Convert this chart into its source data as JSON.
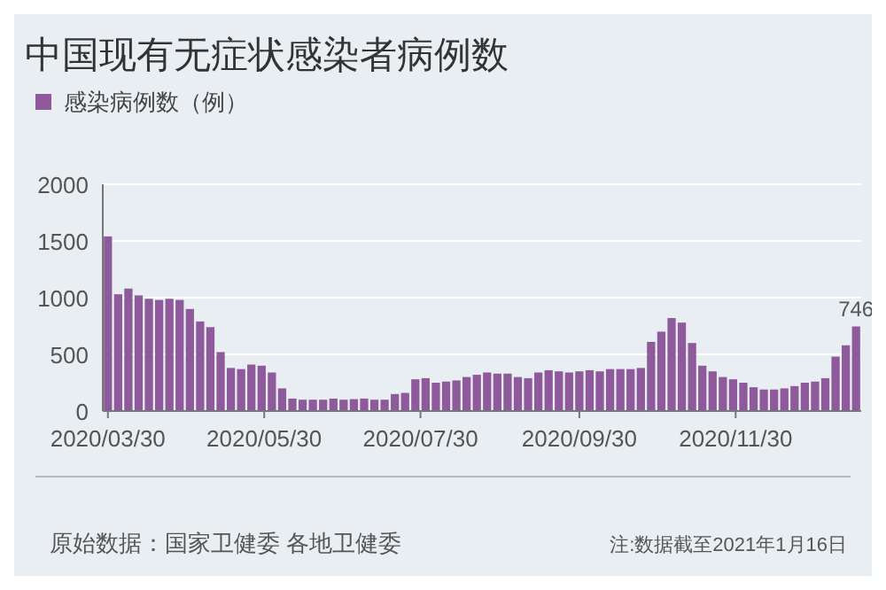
{
  "chart_data": {
    "type": "bar",
    "title": "中国现有无症状感染者病例数",
    "x": [
      "2020-03-30",
      "2020-04-03",
      "2020-04-07",
      "2020-04-11",
      "2020-04-15",
      "2020-04-19",
      "2020-04-23",
      "2020-04-27",
      "2020-05-01",
      "2020-05-05",
      "2020-05-09",
      "2020-05-13",
      "2020-05-17",
      "2020-05-21",
      "2020-05-25",
      "2020-05-29",
      "2020-06-02",
      "2020-06-06",
      "2020-06-10",
      "2020-06-14",
      "2020-06-18",
      "2020-06-22",
      "2020-06-26",
      "2020-06-30",
      "2020-07-04",
      "2020-07-08",
      "2020-07-12",
      "2020-07-16",
      "2020-07-20",
      "2020-07-24",
      "2020-07-28",
      "2020-08-01",
      "2020-08-05",
      "2020-08-09",
      "2020-08-13",
      "2020-08-17",
      "2020-08-21",
      "2020-08-25",
      "2020-08-29",
      "2020-09-02",
      "2020-09-06",
      "2020-09-10",
      "2020-09-14",
      "2020-09-18",
      "2020-09-22",
      "2020-09-26",
      "2020-09-30",
      "2020-10-04",
      "2020-10-08",
      "2020-10-12",
      "2020-10-16",
      "2020-10-20",
      "2020-10-24",
      "2020-10-28",
      "2020-11-01",
      "2020-11-05",
      "2020-11-09",
      "2020-11-13",
      "2020-11-17",
      "2020-11-21",
      "2020-11-25",
      "2020-11-29",
      "2020-12-03",
      "2020-12-07",
      "2020-12-11",
      "2020-12-15",
      "2020-12-19",
      "2020-12-23",
      "2020-12-27",
      "2020-12-31",
      "2021-01-04",
      "2021-01-08",
      "2021-01-12",
      "2021-01-16"
    ],
    "series": [
      {
        "name": "感染病例数（例）",
        "color": "#8e5a9b",
        "values": [
          1540,
          1030,
          1080,
          1020,
          990,
          980,
          990,
          980,
          900,
          790,
          740,
          520,
          380,
          370,
          410,
          400,
          340,
          200,
          110,
          100,
          100,
          100,
          110,
          100,
          105,
          110,
          100,
          100,
          150,
          160,
          280,
          290,
          250,
          260,
          270,
          300,
          320,
          340,
          330,
          330,
          300,
          290,
          340,
          360,
          350,
          340,
          350,
          360,
          350,
          370,
          370,
          370,
          380,
          610,
          700,
          820,
          780,
          600,
          400,
          350,
          300,
          280,
          250,
          210,
          190,
          190,
          200,
          220,
          250,
          260,
          290,
          480,
          580,
          746
        ],
        "value_labels": [
          null,
          null,
          null,
          null,
          null,
          null,
          null,
          null,
          null,
          null,
          null,
          null,
          null,
          null,
          null,
          null,
          null,
          null,
          null,
          null,
          null,
          null,
          null,
          null,
          null,
          null,
          null,
          null,
          null,
          null,
          null,
          null,
          null,
          null,
          null,
          null,
          null,
          null,
          null,
          null,
          null,
          null,
          null,
          null,
          null,
          null,
          null,
          null,
          null,
          null,
          null,
          null,
          null,
          null,
          null,
          null,
          null,
          null,
          null,
          null,
          null,
          null,
          null,
          null,
          null,
          null,
          null,
          null,
          null,
          null,
          null,
          null,
          null,
          "746"
        ]
      }
    ],
    "xlim": [
      "2020-03-28",
      "2021-01-18"
    ],
    "xticks": [
      {
        "value": "2020-03-30",
        "label": "2020/03/30"
      },
      {
        "value": "2020-05-30",
        "label": "2020/05/30"
      },
      {
        "value": "2020-07-30",
        "label": "2020/07/30"
      },
      {
        "value": "2020-09-30",
        "label": "2020/09/30"
      },
      {
        "value": "2020-11-30",
        "label": "2020/11/30"
      }
    ],
    "ylim": [
      0,
      2000
    ],
    "yticks": [
      0,
      500,
      1000,
      1500,
      2000
    ],
    "grid": "y",
    "legend": "top left",
    "annotations": [
      "原始数据：国家卫健委 各地卫健委",
      "注:数据截至2021年1月16日"
    ]
  }
}
